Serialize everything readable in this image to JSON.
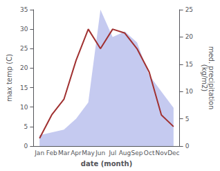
{
  "chart_data": {
    "type": "line",
    "categories": [
      "Jan",
      "Feb",
      "Mar",
      "Apr",
      "May",
      "Jun",
      "Jul",
      "Aug",
      "Sep",
      "Oct",
      "Nov",
      "Dec"
    ],
    "series": [
      {
        "type": "area",
        "axis": "y2",
        "color": "#c5caf0",
        "values": [
          2,
          2.5,
          3,
          5,
          8,
          25,
          20,
          21,
          19,
          13,
          10,
          7
        ]
      },
      {
        "type": "line",
        "axis": "y",
        "color": "#a03030",
        "values": [
          2,
          8,
          12,
          22,
          30,
          25,
          30,
          29,
          25,
          19,
          8,
          5
        ]
      }
    ],
    "xlabel": "date (month)",
    "ylabel": "max temp (C)",
    "y2label": "med. precipitation\n(kg/m2)",
    "ylim": [
      0,
      35
    ],
    "yticks": [
      0,
      5,
      10,
      15,
      20,
      25,
      30,
      35
    ],
    "y2lim": [
      0,
      25
    ],
    "y2ticks": [
      0,
      5,
      10,
      15,
      20,
      25
    ],
    "grid": false
  }
}
